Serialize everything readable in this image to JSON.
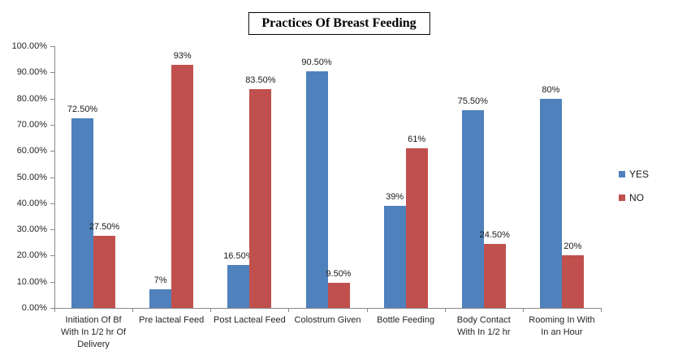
{
  "chart": {
    "title": "Practices Of Breast Feeding"
  },
  "chart_data": {
    "type": "bar",
    "title": "Practices Of Breast Feeding",
    "categories": [
      "Initiation Of Bf With In 1/2 hr Of Delivery",
      "Pre lacteal Feed",
      "Post Lacteal Feed",
      "Colostrum Given",
      "Bottle Feeding",
      "Body Contact With In 1/2 hr",
      "Rooming In With In an Hour"
    ],
    "category_lines": [
      [
        "Initiation Of Bf",
        "With In 1/2 hr Of",
        "Delivery"
      ],
      [
        "Pre lacteal Feed"
      ],
      [
        "Post Lacteal Feed"
      ],
      [
        "Colostrum Given"
      ],
      [
        "Bottle Feeding"
      ],
      [
        "Body Contact",
        "With In 1/2 hr"
      ],
      [
        "Rooming In With",
        "In an Hour"
      ]
    ],
    "series": [
      {
        "name": "YES",
        "color": "#4F81BD",
        "values": [
          72.5,
          7,
          16.5,
          90.5,
          39,
          75.5,
          80
        ],
        "labels": [
          "72.50%",
          "7%",
          "16.50%",
          "90.50%",
          "39%",
          "75.50%",
          "80%"
        ]
      },
      {
        "name": "NO",
        "color": "#C0504D",
        "values": [
          27.5,
          93,
          83.5,
          9.5,
          61,
          24.5,
          20
        ],
        "labels": [
          "27.50%",
          "93%",
          "83.50%",
          "9.50%",
          "61%",
          "24.50%",
          "20%"
        ]
      }
    ],
    "ylim": [
      0,
      100
    ],
    "yticks": [
      "0.00%",
      "10.00%",
      "20.00%",
      "30.00%",
      "40.00%",
      "50.00%",
      "60.00%",
      "70.00%",
      "80.00%",
      "90.00%",
      "100.00%"
    ],
    "grid": false,
    "legend_position": "right",
    "axis_color": "#898989"
  }
}
